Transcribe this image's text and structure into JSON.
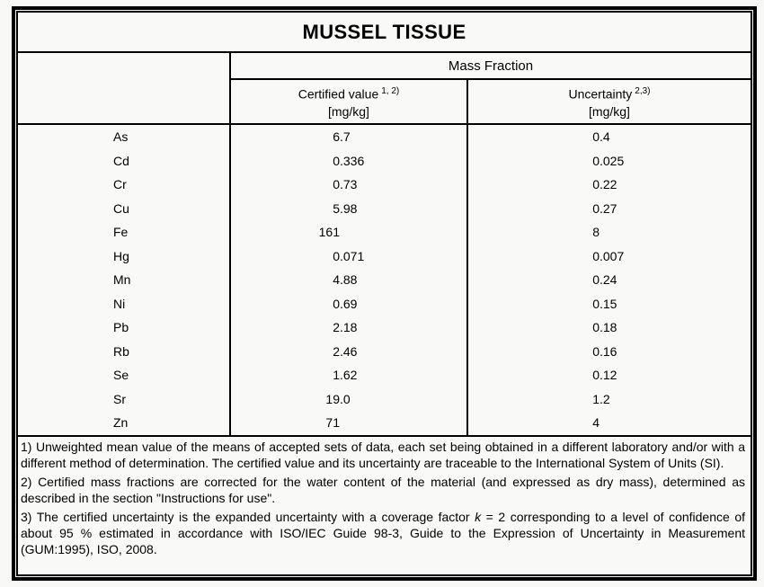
{
  "title": "MUSSEL TISSUE",
  "table": {
    "group_header": "Mass Fraction",
    "columns": [
      {
        "label": "Certified value",
        "sup": "1, 2)",
        "unit": "[mg/kg]"
      },
      {
        "label": "Uncertainty",
        "sup": "2,3)",
        "unit": "[mg/kg]"
      }
    ],
    "rows": [
      {
        "element": "As",
        "certified": "6.7",
        "uncertainty": "0.4"
      },
      {
        "element": "Cd",
        "certified": "0.336",
        "uncertainty": "0.025"
      },
      {
        "element": "Cr",
        "certified": "0.73",
        "uncertainty": "0.22"
      },
      {
        "element": "Cu",
        "certified": "5.98",
        "uncertainty": "0.27"
      },
      {
        "element": "Fe",
        "certified": "161",
        "uncertainty": "8"
      },
      {
        "element": "Hg",
        "certified": "0.071",
        "uncertainty": "0.007"
      },
      {
        "element": "Mn",
        "certified": "4.88",
        "uncertainty": "0.24"
      },
      {
        "element": "Ni",
        "certified": "0.69",
        "uncertainty": "0.15"
      },
      {
        "element": "Pb",
        "certified": "2.18",
        "uncertainty": "0.18"
      },
      {
        "element": "Rb",
        "certified": "2.46",
        "uncertainty": "0.16"
      },
      {
        "element": "Se",
        "certified": "1.62",
        "uncertainty": "0.12"
      },
      {
        "element": "Sr",
        "certified": "19.0",
        "uncertainty": "1.2"
      },
      {
        "element": "Zn",
        "certified": "71",
        "uncertainty": "4"
      }
    ]
  },
  "footnotes": {
    "note1": "1) Unweighted mean value of the means of accepted sets of data, each set being obtained in a different laboratory and/or with a different method of determination. The certified value and its uncertainty are traceable to the International System of Units (SI).",
    "note2": "2) Certified mass fractions are corrected for the water content of the material (and expressed as dry mass), determined as described in the section \"Instructions for use\".",
    "note3_pre": "3) The certified uncertainty is the expanded uncertainty with a coverage factor ",
    "note3_k": "k",
    "note3_post": " = 2 corresponding to a level of confidence of about 95 % estimated in accordance with ISO/IEC Guide 98-3, Guide to the Expression of Uncertainty in Measurement (GUM:1995), ISO, 2008."
  },
  "colors": {
    "page_background": "#f8f8f6",
    "border": "#000000",
    "text": "#000000"
  }
}
